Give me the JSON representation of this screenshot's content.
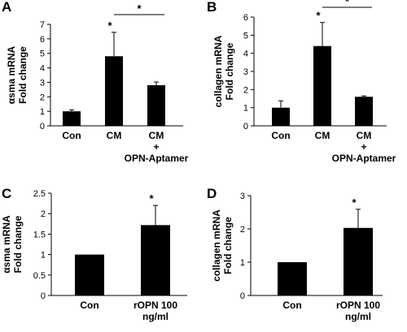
{
  "chart_data": [
    {
      "panel": "A",
      "type": "bar",
      "ylabel_lines": [
        "αsma mRNA",
        "Fold change"
      ],
      "categories": [
        [
          "Con"
        ],
        [
          "CM"
        ],
        [
          "CM",
          "+",
          "OPN-Aptamer"
        ]
      ],
      "values": [
        1.0,
        4.8,
        2.8
      ],
      "errors": [
        0.1,
        1.65,
        0.22
      ],
      "ylim": [
        0,
        7
      ],
      "yticks": [
        0,
        1,
        2,
        3,
        4,
        5,
        6,
        7
      ],
      "bar_stars": [
        "",
        "*",
        ""
      ],
      "bracket": {
        "from": 1,
        "to": 2,
        "label": "*"
      }
    },
    {
      "panel": "B",
      "type": "bar",
      "ylabel_lines": [
        "collagen mRNA",
        "Fold change"
      ],
      "categories": [
        [
          "Con"
        ],
        [
          "CM"
        ],
        [
          "CM",
          "+",
          "OPN-Aptamer"
        ]
      ],
      "values": [
        1.0,
        4.4,
        1.6
      ],
      "errors": [
        0.38,
        1.3,
        0.05
      ],
      "ylim": [
        0,
        6
      ],
      "yticks": [
        0,
        1,
        2,
        3,
        4,
        5,
        6
      ],
      "bar_stars": [
        "",
        "*",
        ""
      ],
      "bracket": {
        "from": 1,
        "to": 2,
        "label": "*"
      }
    },
    {
      "panel": "C",
      "type": "bar",
      "ylabel_lines": [
        "αsma mRNA",
        "Fold change"
      ],
      "categories": [
        [
          "Con"
        ],
        [
          "rOPN 100",
          "ng/ml"
        ]
      ],
      "values": [
        1.0,
        1.72
      ],
      "errors": [
        0.0,
        0.48
      ],
      "ylim": [
        0,
        2.5
      ],
      "yticks": [
        0,
        0.5,
        1,
        1.5,
        2,
        2.5
      ],
      "bar_stars": [
        "",
        "*"
      ],
      "bracket": null
    },
    {
      "panel": "D",
      "type": "bar",
      "ylabel_lines": [
        "collagen mRNA",
        "Fold change"
      ],
      "categories": [
        [
          "Con"
        ],
        [
          "rOPN 100",
          "ng/ml"
        ]
      ],
      "values": [
        1.0,
        2.03
      ],
      "errors": [
        0.0,
        0.56
      ],
      "ylim": [
        0,
        3
      ],
      "yticks": [
        0,
        1,
        2,
        3
      ],
      "bar_stars": [
        "",
        "*"
      ],
      "bracket": null
    }
  ],
  "colors": {
    "bar": "#000000",
    "axis": "#000000",
    "background": "#ffffff"
  }
}
